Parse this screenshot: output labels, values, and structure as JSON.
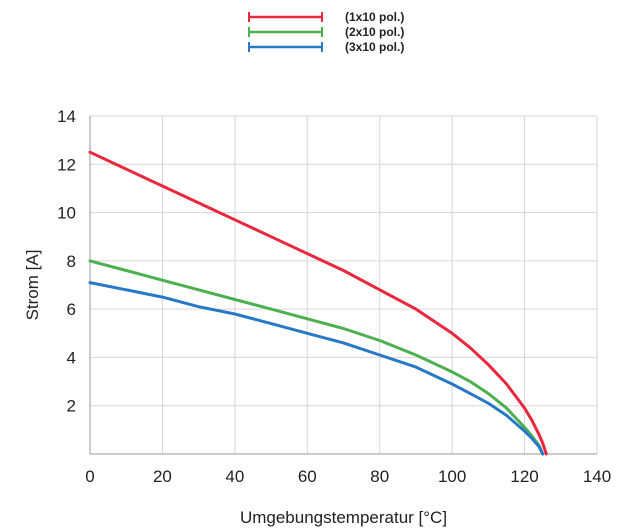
{
  "chart_data": {
    "type": "line",
    "xlabel": "Umgebungstemperatur [°C]",
    "ylabel": "Strom [A]",
    "xlim": [
      0,
      140
    ],
    "ylim": [
      0,
      14
    ],
    "x_ticks": [
      0,
      20,
      40,
      60,
      80,
      100,
      120,
      140
    ],
    "y_ticks": [
      2,
      4,
      6,
      8,
      10,
      12,
      14
    ],
    "grid": true,
    "legend_position": "top-center",
    "series": [
      {
        "name": "(1x10 pol.)",
        "color": "#e8283c",
        "x": [
          0,
          10,
          20,
          30,
          40,
          50,
          60,
          70,
          80,
          90,
          100,
          105,
          110,
          115,
          120,
          122,
          124,
          125,
          126
        ],
        "y": [
          12.5,
          11.8,
          11.1,
          10.4,
          9.7,
          9.0,
          8.3,
          7.6,
          6.8,
          6.0,
          5.0,
          4.4,
          3.7,
          2.9,
          1.9,
          1.4,
          0.8,
          0.45,
          0.0
        ]
      },
      {
        "name": "(2x10 pol.)",
        "color": "#4caf50",
        "x": [
          0,
          10,
          20,
          30,
          40,
          50,
          60,
          70,
          80,
          90,
          100,
          105,
          110,
          115,
          120,
          122,
          124,
          125
        ],
        "y": [
          8.0,
          7.6,
          7.2,
          6.8,
          6.4,
          6.0,
          5.6,
          5.2,
          4.7,
          4.1,
          3.4,
          3.0,
          2.5,
          1.9,
          1.1,
          0.75,
          0.35,
          0.0
        ]
      },
      {
        "name": "(3x10 pol.)",
        "color": "#2878c8",
        "x": [
          0,
          10,
          20,
          30,
          40,
          50,
          60,
          70,
          80,
          90,
          100,
          105,
          110,
          115,
          120,
          122,
          124,
          125
        ],
        "y": [
          7.1,
          6.8,
          6.5,
          6.1,
          5.8,
          5.4,
          5.0,
          4.6,
          4.1,
          3.6,
          2.9,
          2.5,
          2.1,
          1.6,
          0.95,
          0.65,
          0.3,
          0.0
        ]
      }
    ]
  }
}
